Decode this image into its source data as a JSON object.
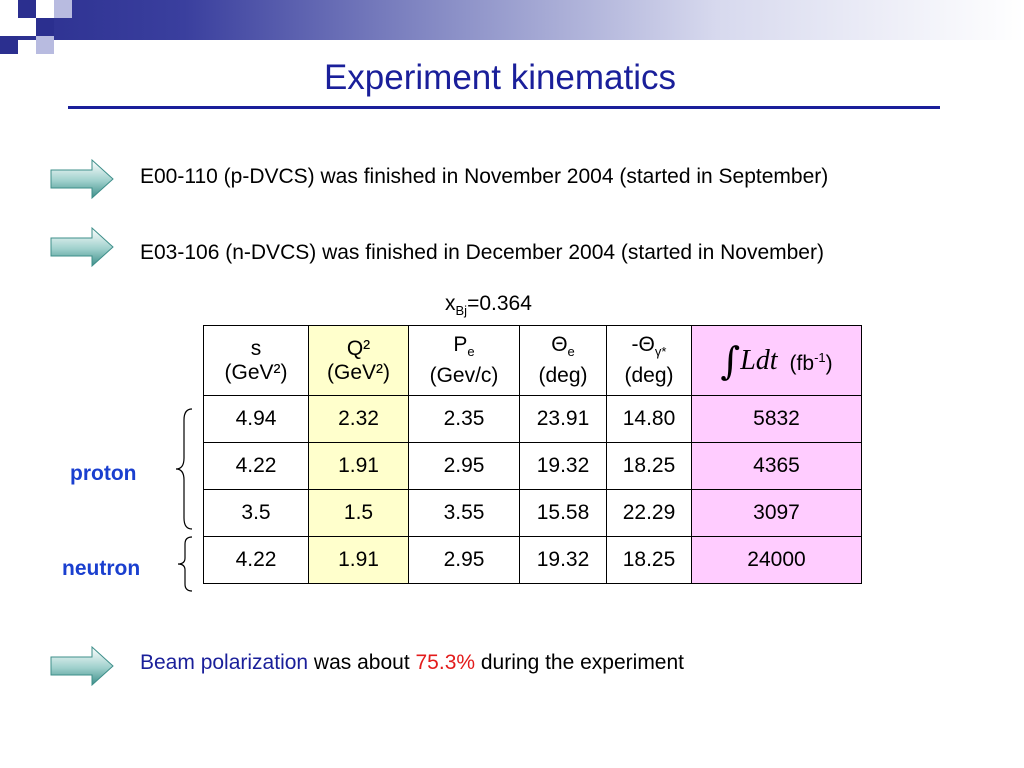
{
  "slide": {
    "title": "Experiment kinematics",
    "bullets": [
      {
        "text": "E00-110 (p-DVCS)  was finished in November 2004 (started in September)"
      },
      {
        "text": "E03-106 (n-DVCS) was finished in December 2004 (started in November)"
      }
    ],
    "xbj": {
      "symbol": "x",
      "sub": "Bj",
      "value": "=0.364"
    },
    "table": {
      "headers": {
        "s": {
          "line1": "s",
          "line2": "(GeV²)"
        },
        "q2": {
          "line1": "Q²",
          "line2": "(GeV²)"
        },
        "pe": {
          "sym": "P",
          "sub": "e",
          "line2": "(Gev/c)"
        },
        "theta_e": {
          "sym": "Θ",
          "sub": "e",
          "line2": "(deg)"
        },
        "theta_g": {
          "sym": "-Θ",
          "sub": "γ*",
          "line2": "(deg)"
        },
        "lumi": {
          "integral": "∫",
          "expr": "Ldt",
          "unit_pre": "(fb",
          "unit_sup": "-1",
          "unit_post": ")"
        }
      },
      "rows": [
        [
          "4.94",
          "2.32",
          "2.35",
          "23.91",
          "14.80",
          "5832"
        ],
        [
          "4.22",
          "1.91",
          "2.95",
          "19.32",
          "18.25",
          "4365"
        ],
        [
          "3.5",
          "1.5",
          "3.55",
          "15.58",
          "22.29",
          "3097"
        ],
        [
          "4.22",
          "1.91",
          "2.95",
          "19.32",
          "18.25",
          "24000"
        ]
      ]
    },
    "labels": {
      "proton": "proton",
      "neutron": "neutron"
    },
    "polarization": {
      "part1": "Beam polarization",
      "part2": " was about ",
      "value": "75.3%",
      "part3": " during the experiment"
    },
    "colors": {
      "title": "#1a1f9a",
      "q2_column": "#ffffcc",
      "lumi_column": "#ffccff",
      "highlight": "#e31b1b",
      "label": "#1a3fcf"
    },
    "icons": [
      "arrow-bullet-icon",
      "brace-icon",
      "integral-icon"
    ]
  }
}
